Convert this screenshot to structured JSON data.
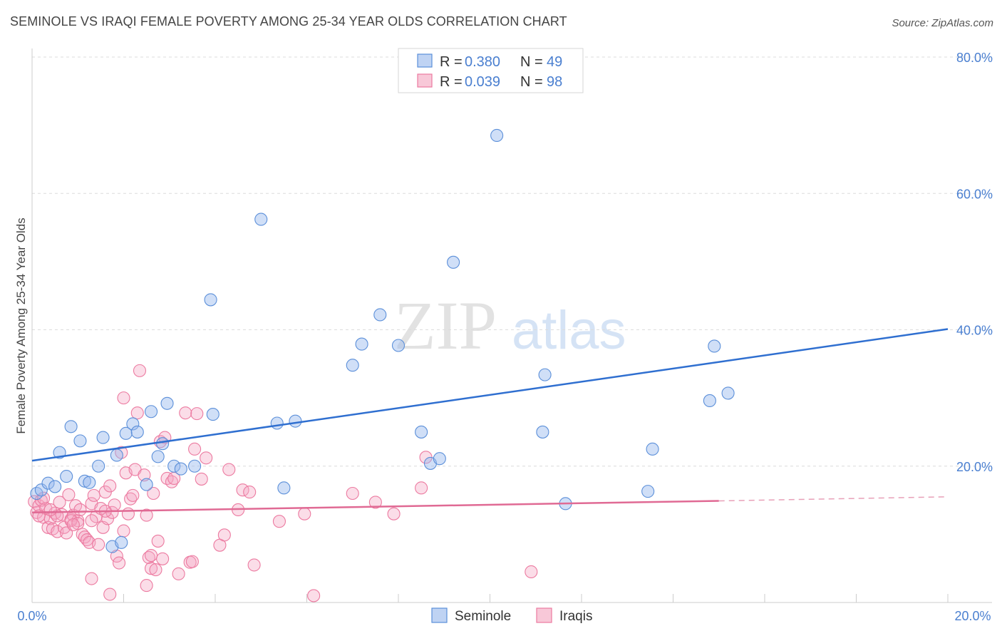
{
  "title": "SEMINOLE VS IRAQI FEMALE POVERTY AMONG 25-34 YEAR OLDS CORRELATION CHART",
  "source": "Source: ZipAtlas.com",
  "watermark": {
    "zip": "ZIP",
    "atlas": "atlas"
  },
  "colors": {
    "seminole": "#5b8fd9",
    "iraqis": "#ec7aa0",
    "axis_text": "#4a7fd0"
  },
  "chart_data": {
    "type": "scatter",
    "title": "SEMINOLE VS IRAQI FEMALE POVERTY AMONG 25-34 YEAR OLDS CORRELATION CHART",
    "xlabel": "",
    "ylabel": "Female Poverty Among 25-34 Year Olds",
    "xlim": [
      0,
      20
    ],
    "ylim": [
      0,
      80
    ],
    "grid": true,
    "x_tick_labels": [
      "0.0%",
      "20.0%"
    ],
    "y_tick_labels": [
      "20.0%",
      "40.0%",
      "60.0%",
      "80.0%"
    ],
    "legend_position": "bottom",
    "stats": [
      {
        "series": "Seminole",
        "R_label": "R = ",
        "R": "0.380",
        "N_label": "N = ",
        "N": "49"
      },
      {
        "series": "Iraqis",
        "R_label": "R = ",
        "R": "0.039",
        "N_label": "N = ",
        "N": "98"
      }
    ],
    "series": [
      {
        "name": "Seminole",
        "color": "#5b8fd9",
        "trend": {
          "x0": 0,
          "y0": 20.8,
          "x1": 20,
          "y1": 40.1
        },
        "points": [
          [
            0.1,
            16.0
          ],
          [
            0.2,
            16.5
          ],
          [
            0.35,
            17.5
          ],
          [
            0.5,
            17.0
          ],
          [
            0.6,
            22.0
          ],
          [
            0.75,
            18.5
          ],
          [
            0.85,
            25.8
          ],
          [
            1.05,
            23.7
          ],
          [
            1.15,
            17.8
          ],
          [
            1.25,
            17.6
          ],
          [
            1.45,
            20.0
          ],
          [
            1.55,
            24.2
          ],
          [
            1.85,
            21.6
          ],
          [
            2.05,
            24.8
          ],
          [
            2.2,
            26.2
          ],
          [
            2.3,
            25.0
          ],
          [
            2.5,
            17.3
          ],
          [
            2.6,
            28.0
          ],
          [
            2.75,
            21.4
          ],
          [
            2.85,
            23.3
          ],
          [
            2.95,
            29.2
          ],
          [
            3.1,
            20.0
          ],
          [
            3.25,
            19.6
          ],
          [
            3.55,
            20.0
          ],
          [
            3.95,
            27.6
          ],
          [
            3.9,
            44.4
          ],
          [
            5.0,
            56.2
          ],
          [
            5.35,
            26.3
          ],
          [
            5.5,
            16.8
          ],
          [
            5.75,
            26.6
          ],
          [
            7.0,
            34.8
          ],
          [
            7.2,
            37.9
          ],
          [
            7.6,
            42.2
          ],
          [
            8.0,
            37.7
          ],
          [
            8.5,
            25.0
          ],
          [
            8.7,
            20.4
          ],
          [
            8.9,
            21.1
          ],
          [
            9.2,
            49.9
          ],
          [
            10.15,
            68.5
          ],
          [
            11.15,
            25.0
          ],
          [
            11.2,
            33.4
          ],
          [
            11.65,
            14.5
          ],
          [
            13.45,
            16.3
          ],
          [
            13.55,
            22.5
          ],
          [
            14.8,
            29.6
          ],
          [
            14.9,
            37.6
          ],
          [
            15.2,
            30.7
          ],
          [
            1.75,
            8.2
          ],
          [
            1.95,
            8.8
          ]
        ]
      },
      {
        "name": "Iraqis",
        "color": "#ec7aa0",
        "trend": {
          "x0": 0,
          "y0": 13.2,
          "x1": 15,
          "y1": 14.9,
          "dash_to_x": 20,
          "dash_to_y": 15.5
        },
        "points": [
          [
            0.05,
            14.8
          ],
          [
            0.1,
            13.2
          ],
          [
            0.15,
            14.2
          ],
          [
            0.2,
            15.0
          ],
          [
            0.25,
            12.5
          ],
          [
            0.3,
            13.8
          ],
          [
            0.35,
            11.0
          ],
          [
            0.4,
            12.3
          ],
          [
            0.45,
            10.8
          ],
          [
            0.5,
            13.1
          ],
          [
            0.55,
            10.4
          ],
          [
            0.6,
            14.7
          ],
          [
            0.65,
            12.9
          ],
          [
            0.7,
            11.0
          ],
          [
            0.75,
            10.2
          ],
          [
            0.8,
            15.8
          ],
          [
            0.85,
            12.2
          ],
          [
            0.9,
            12.8
          ],
          [
            0.95,
            14.2
          ],
          [
            1.0,
            12.0
          ],
          [
            1.05,
            13.6
          ],
          [
            1.1,
            10.0
          ],
          [
            1.15,
            9.6
          ],
          [
            1.2,
            9.2
          ],
          [
            1.25,
            8.8
          ],
          [
            1.3,
            14.5
          ],
          [
            1.35,
            15.7
          ],
          [
            1.4,
            12.6
          ],
          [
            1.45,
            8.5
          ],
          [
            1.5,
            13.8
          ],
          [
            1.55,
            11.0
          ],
          [
            1.6,
            16.2
          ],
          [
            1.65,
            12.3
          ],
          [
            1.7,
            17.1
          ],
          [
            1.75,
            13.2
          ],
          [
            1.8,
            14.3
          ],
          [
            1.85,
            6.8
          ],
          [
            1.9,
            5.8
          ],
          [
            1.95,
            22.0
          ],
          [
            2.0,
            30.0
          ],
          [
            2.05,
            19.0
          ],
          [
            2.1,
            13.0
          ],
          [
            2.15,
            15.2
          ],
          [
            2.2,
            15.7
          ],
          [
            2.25,
            19.5
          ],
          [
            2.3,
            27.8
          ],
          [
            2.35,
            34.0
          ],
          [
            2.45,
            18.7
          ],
          [
            2.5,
            12.8
          ],
          [
            2.55,
            6.6
          ],
          [
            2.6,
            5.0
          ],
          [
            2.65,
            16.0
          ],
          [
            2.7,
            4.8
          ],
          [
            2.75,
            9.0
          ],
          [
            2.8,
            23.6
          ],
          [
            2.85,
            6.4
          ],
          [
            2.9,
            24.2
          ],
          [
            2.95,
            18.2
          ],
          [
            3.05,
            17.7
          ],
          [
            3.1,
            18.2
          ],
          [
            3.2,
            4.2
          ],
          [
            3.35,
            27.8
          ],
          [
            3.45,
            5.9
          ],
          [
            3.5,
            6.0
          ],
          [
            3.55,
            22.5
          ],
          [
            3.6,
            27.7
          ],
          [
            3.7,
            18.1
          ],
          [
            3.8,
            21.2
          ],
          [
            4.1,
            8.4
          ],
          [
            4.2,
            9.9
          ],
          [
            4.3,
            19.5
          ],
          [
            4.5,
            13.6
          ],
          [
            4.6,
            16.5
          ],
          [
            4.75,
            16.2
          ],
          [
            4.85,
            5.5
          ],
          [
            5.4,
            11.9
          ],
          [
            5.95,
            13.0
          ],
          [
            6.15,
            1.0
          ],
          [
            7.0,
            16.0
          ],
          [
            7.5,
            14.7
          ],
          [
            7.9,
            13.0
          ],
          [
            8.5,
            16.8
          ],
          [
            8.6,
            21.3
          ],
          [
            10.9,
            4.5
          ],
          [
            1.3,
            3.5
          ],
          [
            1.7,
            1.2
          ],
          [
            2.5,
            2.5
          ],
          [
            0.25,
            15.3
          ],
          [
            0.15,
            12.7
          ],
          [
            0.55,
            12.7
          ],
          [
            0.85,
            12.0
          ],
          [
            1.0,
            11.6
          ],
          [
            1.3,
            12.0
          ],
          [
            1.6,
            13.4
          ],
          [
            2.0,
            10.5
          ],
          [
            2.6,
            6.9
          ],
          [
            0.4,
            13.6
          ],
          [
            0.9,
            11.4
          ]
        ]
      }
    ]
  },
  "legend": {
    "items": [
      {
        "label": "Seminole"
      },
      {
        "label": "Iraqis"
      }
    ]
  }
}
